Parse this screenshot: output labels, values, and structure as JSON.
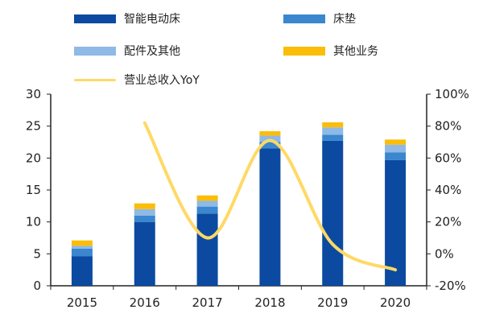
{
  "chart_data": {
    "type": "bar+line",
    "categories": [
      "2015",
      "2016",
      "2017",
      "2018",
      "2019",
      "2020"
    ],
    "series": [
      {
        "name": "智能电动床",
        "kind": "bar",
        "axis": "left",
        "color": "#0b4aa0",
        "values": [
          4.6,
          10.0,
          11.3,
          21.5,
          22.7,
          19.7
        ]
      },
      {
        "name": "床垫",
        "kind": "bar",
        "axis": "left",
        "color": "#3a86cf",
        "values": [
          1.2,
          1.0,
          1.1,
          1.0,
          0.95,
          1.2
        ]
      },
      {
        "name": "配件及其他",
        "kind": "bar",
        "axis": "left",
        "color": "#8fb9e6",
        "values": [
          0.45,
          1.0,
          0.9,
          1.0,
          1.15,
          1.2
        ]
      },
      {
        "name": "其他业务",
        "kind": "bar",
        "axis": "left",
        "color": "#fbbd08",
        "values": [
          0.85,
          0.9,
          0.85,
          0.7,
          0.8,
          0.8
        ]
      },
      {
        "name": "营业总收入YoY",
        "kind": "line",
        "axis": "right",
        "color": "#ffd966",
        "values": [
          null,
          82,
          10,
          71,
          6,
          -10
        ]
      }
    ],
    "ylim_left": [
      0,
      30
    ],
    "yticks_left": [
      "0",
      "5",
      "10",
      "15",
      "20",
      "25",
      "30"
    ],
    "ylim_right": [
      -20,
      100
    ],
    "yticks_right": [
      "-20%",
      "0%",
      "20%",
      "40%",
      "60%",
      "80%",
      "100%"
    ],
    "grid": false,
    "legend_position": "top"
  }
}
